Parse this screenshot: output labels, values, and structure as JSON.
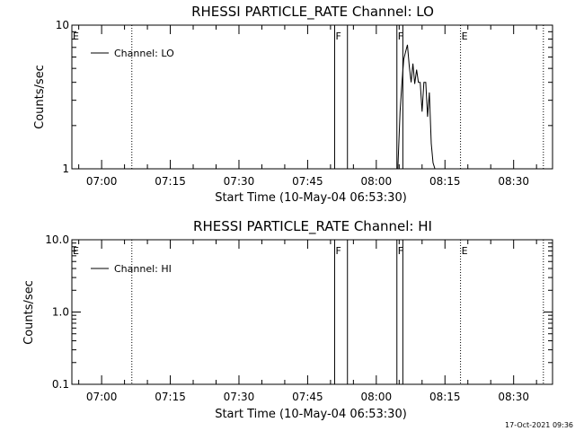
{
  "chart_data": [
    {
      "type": "line",
      "title": "RHESSI PARTICLE_RATE Channel: LO",
      "xlabel": "Start Time (10-May-04 06:53:30)",
      "ylabel": "Counts/sec",
      "x_tick_labels": [
        "07:00",
        "07:15",
        "07:30",
        "07:45",
        "08:00",
        "08:15",
        "08:30"
      ],
      "x_ticks_min": [
        420,
        435,
        450,
        465,
        480,
        495,
        510
      ],
      "xlim_min": [
        413.5,
        518.5
      ],
      "y_scale": "log",
      "ylim": [
        1,
        10
      ],
      "y_tick_labels": [
        "1",
        "10"
      ],
      "y_tick_values": [
        1,
        10
      ],
      "legend": {
        "placement": "top-left",
        "entries": [
          "Channel: LO"
        ]
      },
      "series": [
        {
          "name": "Channel: LO",
          "x_min": [
            484.7,
            485.2,
            485.6,
            486.0,
            486.4,
            486.8,
            487.2,
            487.6,
            488.0,
            488.4,
            488.8,
            489.2,
            489.6,
            490.0,
            490.4,
            490.8,
            491.2,
            491.6,
            492.0,
            492.4,
            492.8
          ],
          "values": [
            1.0,
            2.5,
            4.0,
            5.8,
            6.5,
            7.3,
            5.2,
            4.0,
            5.4,
            3.9,
            4.9,
            4.0,
            4.0,
            2.5,
            4.0,
            4.0,
            2.3,
            3.4,
            1.5,
            1.1,
            1.0
          ]
        }
      ],
      "event_lines": [
        {
          "label": "E",
          "x_min": 411.6,
          "style": "dotted"
        },
        {
          "label": "",
          "x_min": 426.6,
          "style": "dotted"
        },
        {
          "label": "F",
          "x_min": 470.9,
          "style": "solid"
        },
        {
          "label": "",
          "x_min": 473.7,
          "style": "solid"
        },
        {
          "label": "F",
          "x_min": 484.5,
          "style": "solid"
        },
        {
          "label": "",
          "x_min": 485.8,
          "style": "solid"
        },
        {
          "label": "E",
          "x_min": 498.4,
          "style": "dotted"
        },
        {
          "label": "",
          "x_min": 516.5,
          "style": "dotted"
        }
      ]
    },
    {
      "type": "line",
      "title": "RHESSI PARTICLE_RATE Channel: HI",
      "xlabel": "Start Time (10-May-04 06:53:30)",
      "ylabel": "Counts/sec",
      "x_tick_labels": [
        "07:00",
        "07:15",
        "07:30",
        "07:45",
        "08:00",
        "08:15",
        "08:30"
      ],
      "x_ticks_min": [
        420,
        435,
        450,
        465,
        480,
        495,
        510
      ],
      "xlim_min": [
        413.5,
        518.5
      ],
      "y_scale": "log",
      "ylim": [
        0.1,
        10
      ],
      "y_tick_labels": [
        "0.1",
        "1.0",
        "10.0"
      ],
      "y_tick_values": [
        0.1,
        1,
        10
      ],
      "legend": {
        "placement": "top-left",
        "entries": [
          "Channel: HI"
        ]
      },
      "series": [
        {
          "name": "Channel: HI",
          "x_min": [],
          "values": []
        }
      ],
      "event_lines": [
        {
          "label": "E",
          "x_min": 411.6,
          "style": "dotted"
        },
        {
          "label": "",
          "x_min": 426.6,
          "style": "dotted"
        },
        {
          "label": "F",
          "x_min": 470.9,
          "style": "solid"
        },
        {
          "label": "",
          "x_min": 473.7,
          "style": "solid"
        },
        {
          "label": "F",
          "x_min": 484.5,
          "style": "solid"
        },
        {
          "label": "",
          "x_min": 485.8,
          "style": "solid"
        },
        {
          "label": "E",
          "x_min": 498.4,
          "style": "dotted"
        },
        {
          "label": "",
          "x_min": 516.5,
          "style": "dotted"
        }
      ]
    }
  ],
  "footer": {
    "timestamp": "17-Oct-2021 09:36"
  },
  "colors": {
    "background": "#ffffff",
    "foreground": "#000000"
  }
}
